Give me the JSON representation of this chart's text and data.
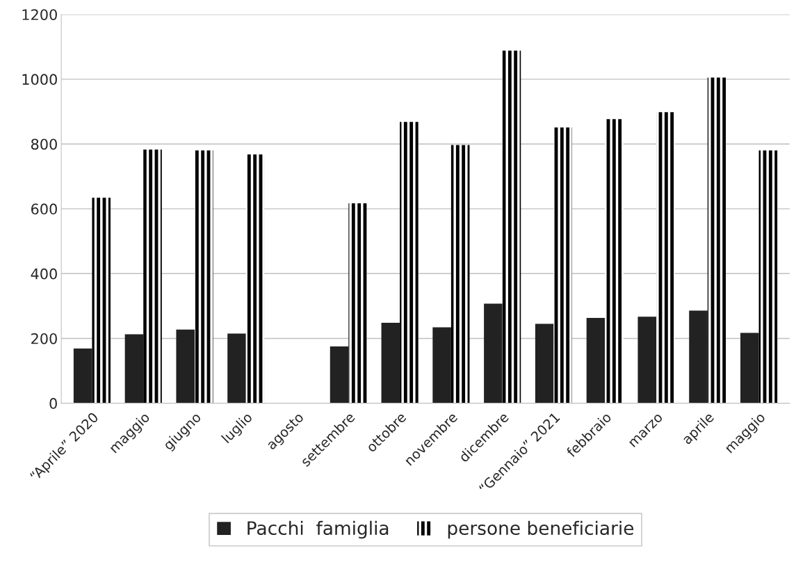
{
  "chart_data": {
    "type": "bar",
    "categories": [
      "“Aprile” 2020",
      "maggio",
      "giugno",
      "luglio",
      "agosto",
      "settembre",
      "ottobre",
      "novembre",
      "dicembre",
      "“Gennaio” 2021",
      "febbraio",
      "marzo",
      "aprile",
      "maggio"
    ],
    "series": [
      {
        "name": "Pacchi  famiglia",
        "color": "#222222",
        "values": [
          169,
          213,
          227,
          215,
          null,
          175,
          248,
          234,
          307,
          245,
          263,
          267,
          286,
          217
        ]
      },
      {
        "name": "persone beneficiarie",
        "color": "#000000",
        "values": [
          634,
          783,
          780,
          768,
          null,
          617,
          868,
          797,
          1088,
          851,
          877,
          898,
          1005,
          780
        ]
      }
    ],
    "ylim": [
      0,
      1200
    ],
    "yticks": [
      0,
      200,
      400,
      600,
      800,
      1000,
      1200
    ],
    "grid": "y",
    "legend": "bottom"
  }
}
